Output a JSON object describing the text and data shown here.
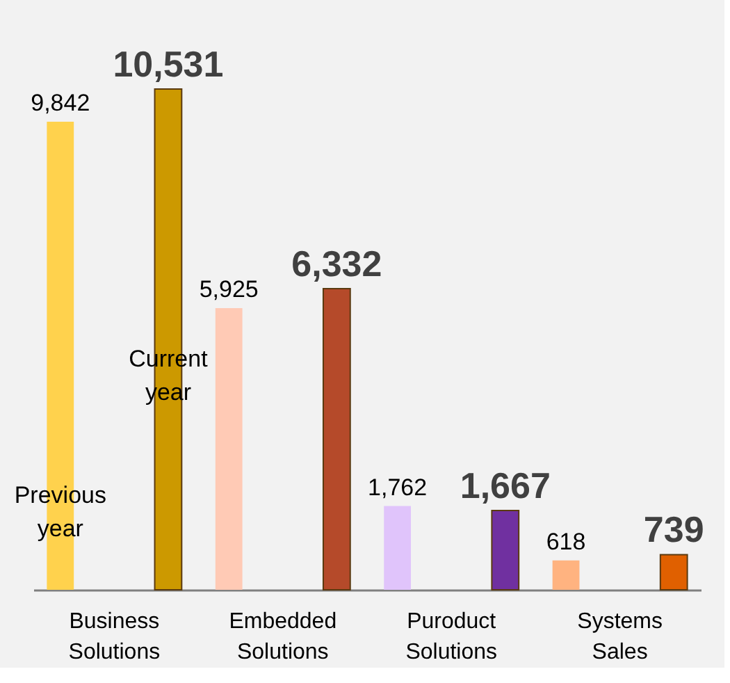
{
  "chart_data": {
    "type": "bar",
    "categories": [
      "Business Solutions",
      "Embedded Solutions",
      "Puroduct Solutions",
      "Systems Sales"
    ],
    "series": [
      {
        "name": "Previous year",
        "values": [
          9842,
          5925,
          1762,
          618
        ],
        "value_labels": [
          "9,842",
          "5,925",
          "1,762",
          "618"
        ],
        "colors": [
          "#ffd24d",
          "#ffcab5",
          "#e0c4fb",
          "#ffb380"
        ]
      },
      {
        "name": "Current year",
        "values": [
          10531,
          6332,
          1667,
          739
        ],
        "value_labels": [
          "10,531",
          "6,332",
          "1,667",
          "739"
        ],
        "colors": [
          "#cc9900",
          "#b54a2a",
          "#7030a0",
          "#e06000"
        ]
      }
    ],
    "grid": false
  }
}
